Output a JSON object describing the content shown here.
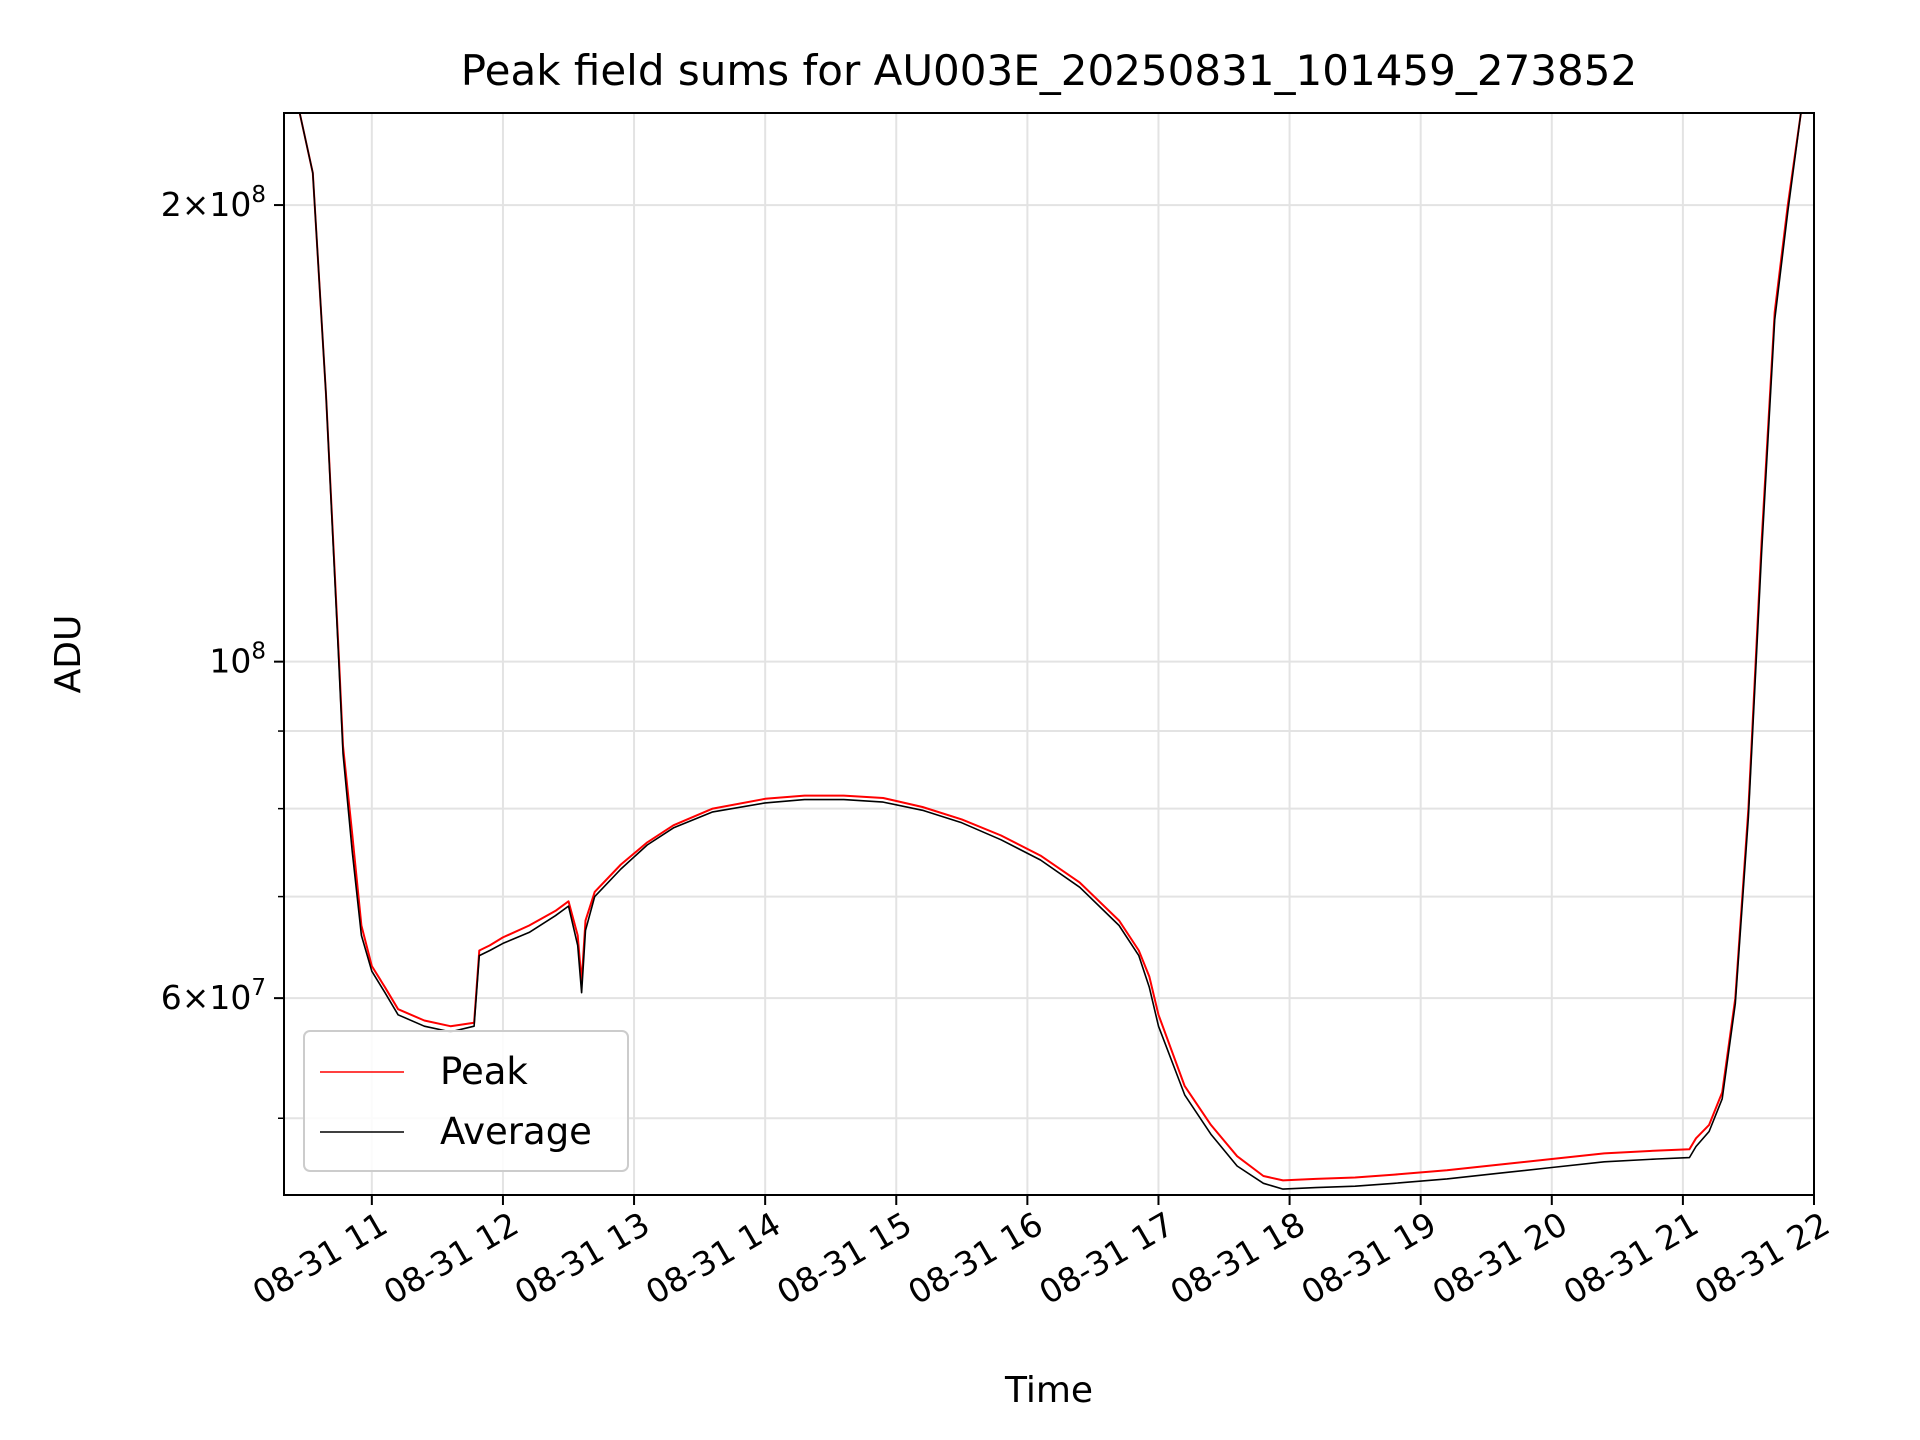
{
  "chart_data": {
    "type": "line",
    "title": "Peak field sums for AU003E_20250831_101459_273852",
    "xlabel": "Time",
    "ylabel": "ADU",
    "yscale": "log",
    "ylim": [
      44500000,
      230000000
    ],
    "xlim": [
      10.33,
      22.0
    ],
    "x_unit": "hours on 2025-08-31",
    "x_ticks": [
      11,
      12,
      13,
      14,
      15,
      16,
      17,
      18,
      19,
      20,
      21,
      22
    ],
    "x_tick_labels": [
      "08-31 11",
      "08-31 12",
      "08-31 13",
      "08-31 14",
      "08-31 15",
      "08-31 16",
      "08-31 17",
      "08-31 18",
      "08-31 19",
      "08-31 20",
      "08-31 21",
      "08-31 22"
    ],
    "y_ticks": [
      {
        "value": 200000000,
        "base": "2×10",
        "exp": "8"
      },
      {
        "value": 100000000,
        "base": "10",
        "exp": "8"
      },
      {
        "value": 60000000,
        "base": "6×10",
        "exp": "7"
      }
    ],
    "y_minor_ticks": [
      50000000,
      70000000,
      80000000,
      90000000
    ],
    "grid": true,
    "legend_position": "lower-left",
    "series": [
      {
        "name": "Peak",
        "color": "#ff0000",
        "x": [
          10.33,
          10.45,
          10.55,
          10.65,
          10.75,
          10.78,
          10.85,
          10.92,
          11.0,
          11.1,
          11.2,
          11.4,
          11.6,
          11.78,
          11.82,
          11.9,
          12.0,
          12.2,
          12.4,
          12.5,
          12.57,
          12.6,
          12.63,
          12.7,
          12.9,
          13.1,
          13.3,
          13.6,
          14.0,
          14.3,
          14.6,
          14.9,
          15.2,
          15.5,
          15.8,
          16.1,
          16.4,
          16.7,
          16.85,
          16.93,
          17.0,
          17.2,
          17.4,
          17.6,
          17.8,
          17.95,
          18.2,
          18.5,
          18.8,
          19.2,
          19.6,
          20.0,
          20.4,
          20.8,
          21.05,
          21.1,
          21.2,
          21.3,
          21.4,
          21.5,
          21.6,
          21.7,
          21.8,
          21.9,
          22.0
        ],
        "values": [
          230000000,
          230000000,
          210000000,
          150000000,
          100000000,
          88000000,
          77000000,
          67000000,
          63000000,
          61000000,
          59000000,
          58000000,
          57500000,
          57800000,
          64500000,
          65000000,
          65800000,
          67000000,
          68500000,
          69500000,
          66000000,
          61500000,
          67500000,
          70500000,
          73500000,
          76000000,
          78000000,
          80000000,
          81200000,
          81600000,
          81600000,
          81300000,
          80200000,
          78700000,
          76800000,
          74500000,
          71500000,
          67500000,
          64500000,
          62000000,
          58500000,
          52500000,
          49500000,
          47200000,
          45800000,
          45500000,
          45600000,
          45700000,
          45900000,
          46200000,
          46600000,
          47000000,
          47400000,
          47600000,
          47700000,
          48500000,
          49500000,
          52000000,
          60000000,
          80000000,
          120000000,
          170000000,
          200000000,
          230000000,
          230000000
        ]
      },
      {
        "name": "Average",
        "color": "#000000",
        "x": [
          10.33,
          10.45,
          10.55,
          10.65,
          10.75,
          10.78,
          10.85,
          10.92,
          11.0,
          11.1,
          11.2,
          11.4,
          11.6,
          11.78,
          11.82,
          11.9,
          12.0,
          12.2,
          12.4,
          12.5,
          12.57,
          12.6,
          12.63,
          12.7,
          12.9,
          13.1,
          13.3,
          13.6,
          14.0,
          14.3,
          14.6,
          14.9,
          15.2,
          15.5,
          15.8,
          16.1,
          16.4,
          16.7,
          16.85,
          16.93,
          17.0,
          17.2,
          17.4,
          17.6,
          17.8,
          17.95,
          18.2,
          18.5,
          18.8,
          19.2,
          19.6,
          20.0,
          20.4,
          20.8,
          21.05,
          21.1,
          21.2,
          21.3,
          21.4,
          21.5,
          21.6,
          21.7,
          21.8,
          21.9,
          22.0
        ],
        "values": [
          230000000,
          230000000,
          210000000,
          150000000,
          99000000,
          87000000,
          75000000,
          66000000,
          62500000,
          60500000,
          58500000,
          57500000,
          57000000,
          57500000,
          64000000,
          64500000,
          65200000,
          66300000,
          68000000,
          69000000,
          65000000,
          60500000,
          66500000,
          70000000,
          73000000,
          75700000,
          77700000,
          79600000,
          80700000,
          81100000,
          81100000,
          80800000,
          79800000,
          78300000,
          76300000,
          74000000,
          71000000,
          67000000,
          64000000,
          61000000,
          57500000,
          51800000,
          48800000,
          46500000,
          45300000,
          44900000,
          45000000,
          45100000,
          45300000,
          45600000,
          46000000,
          46400000,
          46800000,
          47000000,
          47100000,
          47900000,
          49000000,
          51500000,
          59500000,
          79000000,
          118000000,
          168000000,
          198000000,
          230000000,
          230000000
        ]
      }
    ]
  }
}
